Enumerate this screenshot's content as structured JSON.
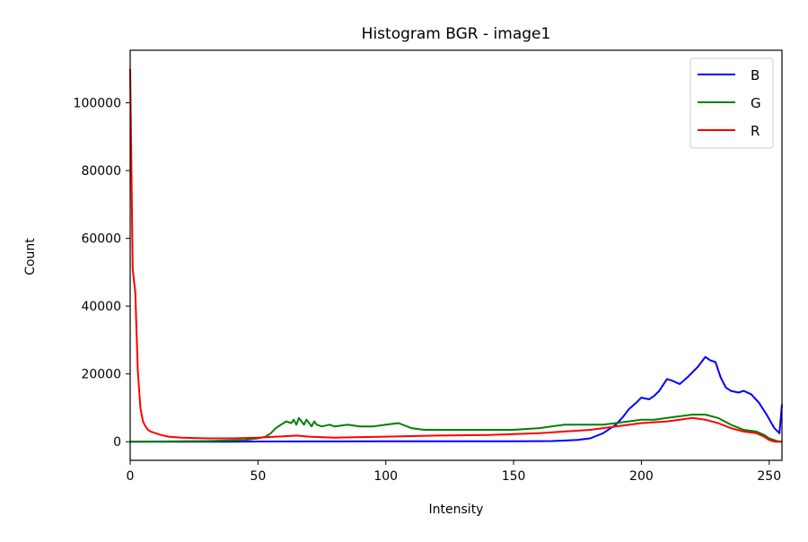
{
  "chart_data": {
    "type": "line",
    "title": "Histogram BGR - image1",
    "xlabel": "Intensity",
    "ylabel": "Count",
    "xlim": [
      0,
      255
    ],
    "ylim": [
      -5500,
      115500
    ],
    "xticks": [
      0,
      50,
      100,
      150,
      200,
      250
    ],
    "xtick_labels": [
      "0",
      "50",
      "100",
      "150",
      "200",
      "250"
    ],
    "yticks": [
      0,
      20000,
      40000,
      60000,
      80000,
      100000
    ],
    "ytick_labels": [
      "0",
      "20000",
      "40000",
      "60000",
      "80000",
      "100000"
    ],
    "grid": false,
    "legend_position": "top-right",
    "series": [
      {
        "name": "B",
        "color": "#0000ff",
        "x": [
          0,
          40,
          50,
          100,
          150,
          165,
          175,
          180,
          185,
          190,
          193,
          195,
          198,
          200,
          203,
          205,
          207,
          210,
          212,
          215,
          218,
          220,
          222,
          225,
          227,
          229,
          231,
          233,
          235,
          238,
          240,
          243,
          246,
          249,
          252,
          254,
          255
        ],
        "values": [
          0,
          0,
          50,
          100,
          100,
          200,
          500,
          1000,
          2500,
          5000,
          7500,
          9500,
          11500,
          13000,
          12500,
          13500,
          15000,
          18500,
          18000,
          17000,
          19000,
          20500,
          22000,
          25000,
          24000,
          23500,
          19000,
          16000,
          15000,
          14500,
          15000,
          14000,
          11500,
          8000,
          4000,
          2500,
          11000
        ]
      },
      {
        "name": "G",
        "color": "#008000",
        "x": [
          0,
          30,
          45,
          50,
          53,
          55,
          57,
          59,
          61,
          63,
          64,
          65,
          66,
          67,
          68,
          69,
          70,
          71,
          72,
          73,
          75,
          78,
          80,
          85,
          90,
          95,
          100,
          105,
          110,
          115,
          120,
          130,
          140,
          150,
          160,
          170,
          175,
          180,
          185,
          190,
          195,
          200,
          205,
          210,
          215,
          220,
          225,
          230,
          235,
          240,
          245,
          248,
          250,
          253,
          255
        ],
        "values": [
          0,
          200,
          500,
          1000,
          1500,
          2500,
          4000,
          5000,
          6000,
          5500,
          6500,
          5000,
          7000,
          6000,
          5000,
          6500,
          5500,
          4500,
          6000,
          5000,
          4500,
          5000,
          4500,
          5000,
          4500,
          4500,
          5000,
          5500,
          4000,
          3500,
          3500,
          3500,
          3500,
          3500,
          4000,
          5000,
          5000,
          5000,
          5000,
          5500,
          6000,
          6500,
          6500,
          7000,
          7500,
          8000,
          8000,
          7000,
          5000,
          3500,
          3000,
          2000,
          1000,
          200,
          0
        ]
      },
      {
        "name": "R",
        "color": "#ff0000",
        "x": [
          0,
          1,
          2,
          3,
          4,
          5,
          6,
          7,
          8,
          10,
          12,
          15,
          20,
          30,
          40,
          50,
          55,
          60,
          65,
          70,
          80,
          100,
          120,
          140,
          160,
          180,
          190,
          200,
          210,
          215,
          220,
          225,
          230,
          235,
          240,
          245,
          248,
          250,
          252,
          255
        ],
        "values": [
          110000,
          51000,
          44000,
          21000,
          10000,
          6000,
          4500,
          3500,
          3000,
          2500,
          2000,
          1500,
          1200,
          1000,
          1000,
          1200,
          1400,
          1600,
          1800,
          1500,
          1200,
          1500,
          1800,
          2000,
          2500,
          3500,
          4500,
          5500,
          6000,
          6500,
          7000,
          6500,
          5500,
          4000,
          3000,
          2500,
          1500,
          500,
          0,
          0
        ]
      }
    ]
  }
}
